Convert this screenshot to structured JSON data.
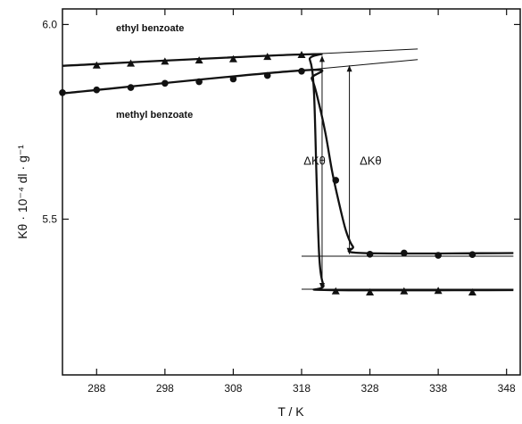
{
  "chart_data": {
    "type": "scatter",
    "xlabel": "T / K",
    "ylabel": "Kθ · 10⁻⁴ dl · g⁻¹",
    "xlim": [
      283,
      350
    ],
    "ylim": [
      5.1,
      6.04
    ],
    "xticks": [
      288,
      298,
      308,
      318,
      328,
      338,
      348
    ],
    "xtick_labels": [
      "288",
      "298",
      "308",
      "318",
      "328",
      "338",
      "348"
    ],
    "yticks": [
      5.5,
      6.0
    ],
    "ytick_labels": [
      "5.5",
      "6.0"
    ],
    "grid": false,
    "series": [
      {
        "name": "ethyl benzoate",
        "marker": "triangle",
        "points": [
          [
            288,
            5.895
          ],
          [
            293,
            5.9
          ],
          [
            298,
            5.905
          ],
          [
            303,
            5.908
          ],
          [
            308,
            5.911
          ],
          [
            313,
            5.917
          ],
          [
            318,
            5.922
          ],
          [
            323,
            5.315
          ],
          [
            328,
            5.312
          ],
          [
            333,
            5.315
          ],
          [
            338,
            5.316
          ],
          [
            343,
            5.312
          ]
        ],
        "curve": [
          [
            283,
            5.894
          ],
          [
            318,
            5.923
          ],
          [
            319.2,
            5.91
          ],
          [
            319.8,
            5.83
          ],
          [
            320.2,
            5.6
          ],
          [
            320.6,
            5.4
          ],
          [
            321.2,
            5.33
          ],
          [
            322,
            5.318
          ],
          [
            349,
            5.318
          ]
        ]
      },
      {
        "name": "methyl benzoate",
        "marker": "circle",
        "points": [
          [
            283,
            5.825
          ],
          [
            288,
            5.832
          ],
          [
            293,
            5.838
          ],
          [
            298,
            5.849
          ],
          [
            303,
            5.853
          ],
          [
            308,
            5.86
          ],
          [
            313,
            5.869
          ],
          [
            318,
            5.88
          ],
          [
            323,
            5.6
          ],
          [
            328,
            5.41
          ],
          [
            333,
            5.413
          ],
          [
            338,
            5.407
          ],
          [
            343,
            5.409
          ]
        ],
        "curve": [
          [
            283,
            5.823
          ],
          [
            318,
            5.882
          ],
          [
            319.5,
            5.86
          ],
          [
            320.5,
            5.8
          ],
          [
            321.5,
            5.72
          ],
          [
            322.5,
            5.62
          ],
          [
            323.5,
            5.54
          ],
          [
            324.5,
            5.47
          ],
          [
            325.5,
            5.43
          ],
          [
            327,
            5.413
          ],
          [
            349,
            5.413
          ]
        ]
      }
    ],
    "extrapolations": [
      {
        "from": [
          318,
          5.923
        ],
        "to": [
          335,
          5.937
        ]
      },
      {
        "from": [
          318,
          5.882
        ],
        "to": [
          335,
          5.91
        ]
      },
      {
        "from": [
          318,
          5.405
        ],
        "to": [
          349,
          5.405
        ]
      },
      {
        "from": [
          318,
          5.32
        ],
        "to": [
          349,
          5.32
        ]
      }
    ],
    "annotations": [
      {
        "text": "ΔKθ",
        "x": 318.3,
        "y": 5.64
      },
      {
        "text": "ΔKθ",
        "x": 326.5,
        "y": 5.64
      }
    ],
    "delta_arrows": [
      {
        "x": 321,
        "y1": 5.92,
        "y2": 5.32
      },
      {
        "x": 325,
        "y1": 5.895,
        "y2": 5.41
      }
    ]
  }
}
